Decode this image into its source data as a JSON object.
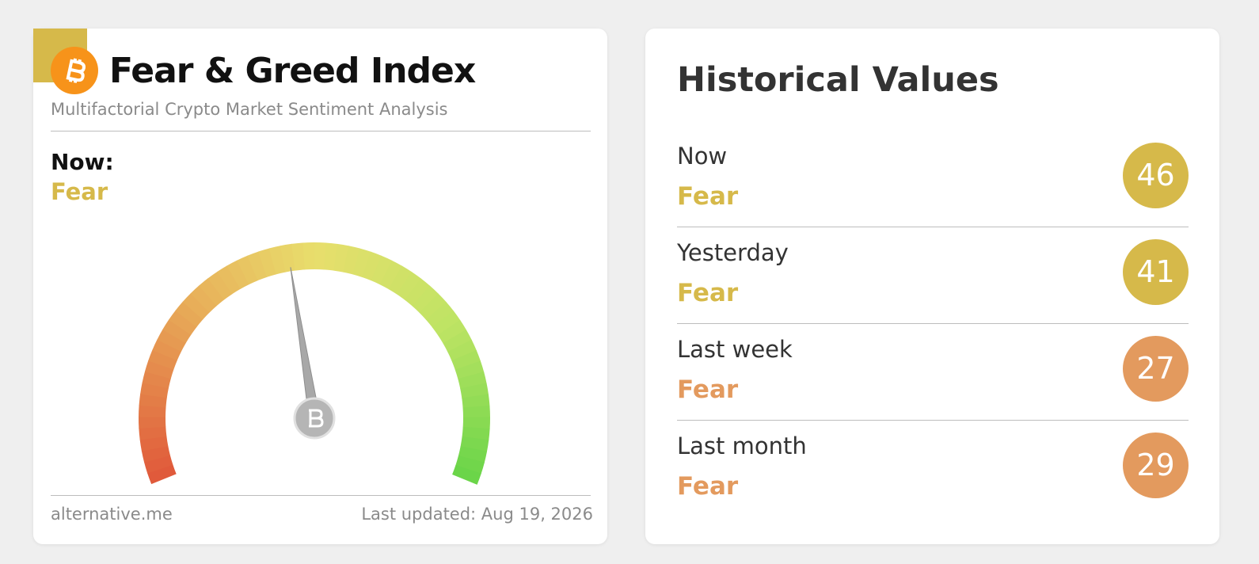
{
  "gauge_card": {
    "title": "Fear & Greed Index",
    "subtitle": "Multifactorial Crypto Market Sentiment Analysis",
    "now_label": "Now:",
    "classification": "Fear",
    "value": 46,
    "color": "#d6b94a",
    "source": "alternative.me",
    "last_updated": "Last updated: Aug 19, 2026"
  },
  "history_card": {
    "title": "Historical Values",
    "rows": [
      {
        "label": "Now",
        "classification": "Fear",
        "value": 46,
        "color": "#d6b94a"
      },
      {
        "label": "Yesterday",
        "classification": "Fear",
        "value": 41,
        "color": "#d6b94a"
      },
      {
        "label": "Last week",
        "classification": "Fear",
        "value": 27,
        "color": "#e39a5e"
      },
      {
        "label": "Last month",
        "classification": "Fear",
        "value": 29,
        "color": "#e39a5e"
      }
    ]
  }
}
